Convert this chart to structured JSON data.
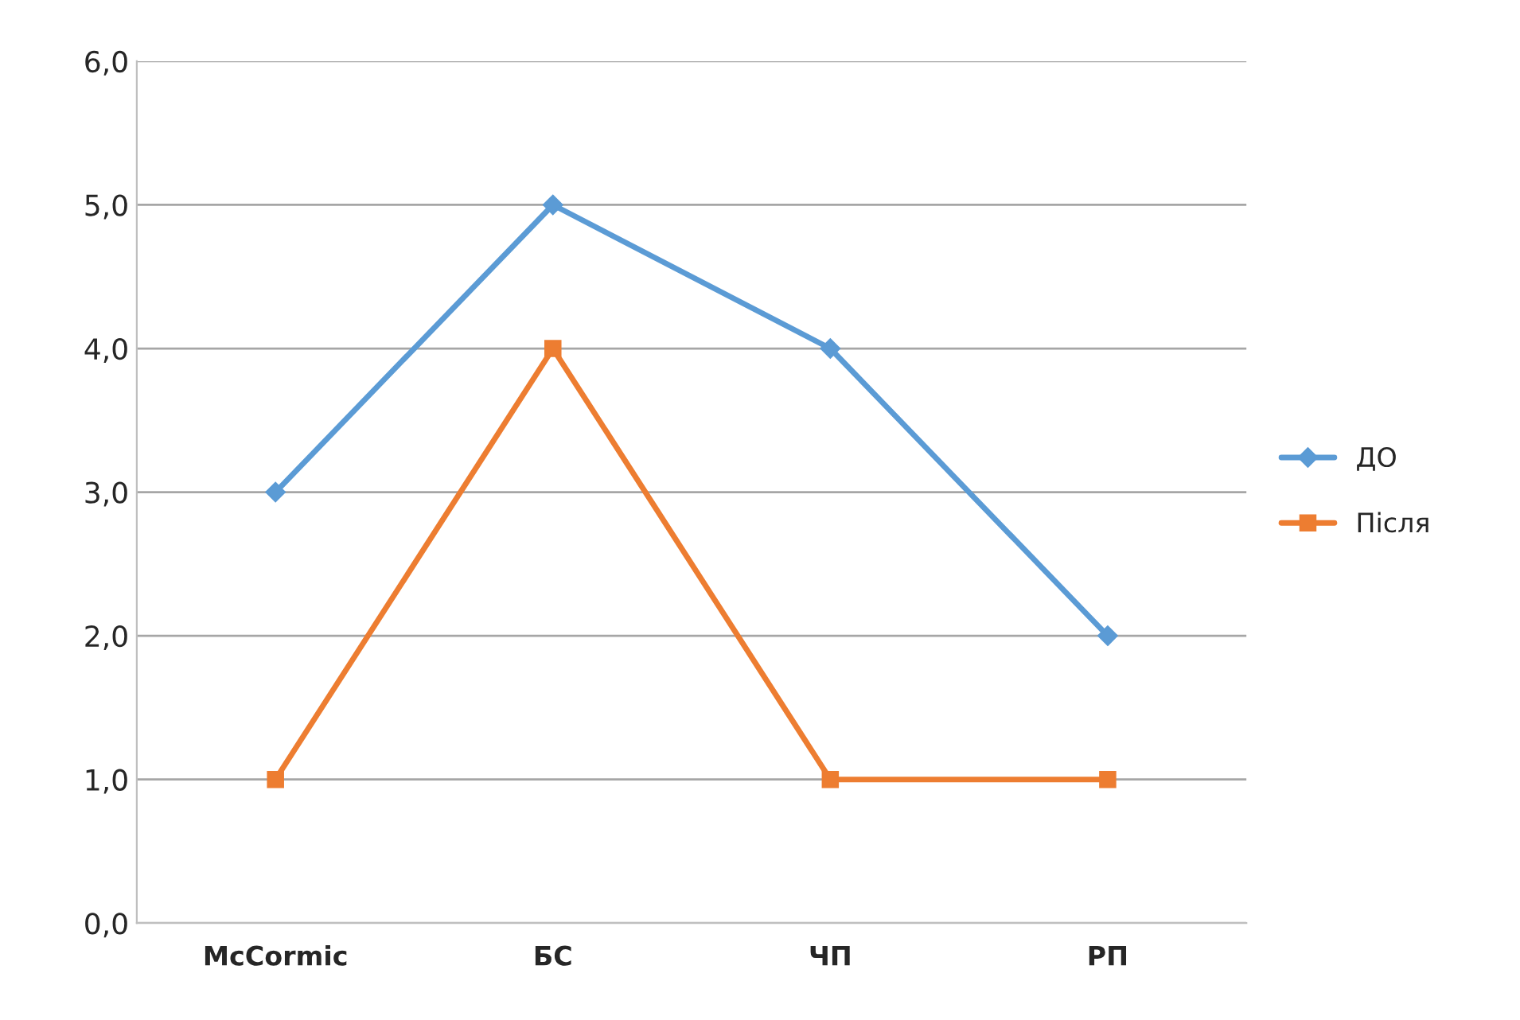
{
  "chart_data": {
    "type": "line",
    "categories": [
      "McCormic",
      "БС",
      "ЧП",
      "РП"
    ],
    "series": [
      {
        "name": "ДО",
        "color": "#5b9bd5",
        "values": [
          3,
          5,
          4,
          2
        ],
        "marker": "diamond"
      },
      {
        "name": "Після",
        "color": "#ed7d31",
        "values": [
          1,
          4,
          1,
          1
        ],
        "marker": "square"
      }
    ],
    "ylim": [
      0,
      6
    ],
    "yticks": [
      {
        "value": 0,
        "label": "0,0"
      },
      {
        "value": 1,
        "label": "1,0"
      },
      {
        "value": 2,
        "label": "2,0"
      },
      {
        "value": 3,
        "label": "3,0"
      },
      {
        "value": 4,
        "label": "4,0"
      },
      {
        "value": 5,
        "label": "5,0"
      },
      {
        "value": 6,
        "label": "6,0"
      }
    ],
    "grid": "y",
    "legend": "right",
    "line_style": "solid"
  }
}
